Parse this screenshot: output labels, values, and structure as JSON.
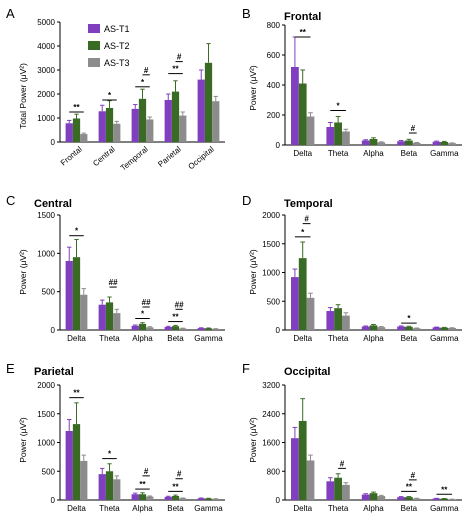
{
  "legend": [
    {
      "name": "AS-T1",
      "color": "#7f3fbf"
    },
    {
      "name": "AS-T2",
      "color": "#3a6b24"
    },
    {
      "name": "AS-T3",
      "color": "#8c8c8c"
    }
  ],
  "chart_data": [
    {
      "panel": "A",
      "type": "bar",
      "title": "",
      "ylabel": "Total Power (μV²)",
      "ylim": [
        0,
        5000
      ],
      "yticks": [
        0,
        1000,
        2000,
        3000,
        4000,
        5000
      ],
      "categories": [
        "Frontal",
        "Central",
        "Temporal",
        "Parietal",
        "Occipital"
      ],
      "rotate_labels": true,
      "series": [
        {
          "name": "AS-T1",
          "values": [
            780,
            1280,
            1380,
            1750,
            2600
          ],
          "errors": [
            120,
            250,
            180,
            250,
            400
          ]
        },
        {
          "name": "AS-T2",
          "values": [
            980,
            1420,
            1800,
            2100,
            3300
          ],
          "errors": [
            180,
            300,
            400,
            450,
            800
          ]
        },
        {
          "name": "AS-T3",
          "values": [
            330,
            760,
            940,
            1100,
            1700
          ],
          "errors": [
            40,
            100,
            100,
            150,
            200
          ]
        }
      ],
      "significance": [
        {
          "category": 0,
          "from": 0,
          "to": 2,
          "label": "**",
          "y": 1250
        },
        {
          "category": 1,
          "from": 0,
          "to": 2,
          "label": "*",
          "y": 1750
        },
        {
          "category": 2,
          "from": 0,
          "to": 2,
          "label": "*",
          "y": 2300
        },
        {
          "category": 2,
          "from": 1,
          "to": 2,
          "label": "#",
          "y": 2800
        },
        {
          "category": 3,
          "from": 0,
          "to": 2,
          "label": "**",
          "y": 2850
        },
        {
          "category": 3,
          "from": 1,
          "to": 2,
          "label": "#",
          "y": 3350
        }
      ]
    },
    {
      "panel": "B",
      "type": "bar",
      "title": "Frontal",
      "ylabel": "Power (μV²)",
      "ylim": [
        0,
        800
      ],
      "yticks": [
        0,
        200,
        400,
        600,
        800
      ],
      "categories": [
        "Delta",
        "Theta",
        "Alpha",
        "Beta",
        "Gamma"
      ],
      "series": [
        {
          "name": "AS-T1",
          "values": [
            520,
            120,
            30,
            25,
            22
          ],
          "errors": [
            200,
            30,
            5,
            5,
            4
          ]
        },
        {
          "name": "AS-T2",
          "values": [
            410,
            150,
            40,
            30,
            20
          ],
          "errors": [
            90,
            40,
            8,
            8,
            4
          ]
        },
        {
          "name": "AS-T3",
          "values": [
            190,
            90,
            18,
            14,
            12
          ],
          "errors": [
            25,
            15,
            3,
            3,
            2
          ]
        }
      ],
      "significance": [
        {
          "category": 0,
          "from": 0,
          "to": 2,
          "label": "**",
          "y": 720
        },
        {
          "category": 1,
          "from": 0,
          "to": 2,
          "label": "*",
          "y": 230
        },
        {
          "category": 3,
          "from": 1,
          "to": 2,
          "label": "#",
          "y": 80
        }
      ]
    },
    {
      "panel": "C",
      "type": "bar",
      "title": "Central",
      "ylabel": "Power (μV²)",
      "ylim": [
        0,
        1500
      ],
      "yticks": [
        0,
        500,
        1000,
        1500
      ],
      "categories": [
        "Delta",
        "Theta",
        "Alpha",
        "Beta",
        "Gamma"
      ],
      "series": [
        {
          "name": "AS-T1",
          "values": [
            900,
            330,
            55,
            40,
            25
          ],
          "errors": [
            180,
            60,
            10,
            8,
            4
          ]
        },
        {
          "name": "AS-T2",
          "values": [
            950,
            360,
            80,
            50,
            22
          ],
          "errors": [
            230,
            70,
            15,
            10,
            4
          ]
        },
        {
          "name": "AS-T3",
          "values": [
            460,
            220,
            35,
            20,
            15
          ],
          "errors": [
            80,
            50,
            8,
            4,
            3
          ]
        }
      ],
      "significance": [
        {
          "category": 0,
          "from": 0,
          "to": 2,
          "label": "*",
          "y": 1230
        },
        {
          "category": 1,
          "from": 1,
          "to": 2,
          "label": "##",
          "y": 560
        },
        {
          "category": 2,
          "from": 0,
          "to": 2,
          "label": "*",
          "y": 150
        },
        {
          "category": 2,
          "from": 1,
          "to": 2,
          "label": "##",
          "y": 300
        },
        {
          "category": 3,
          "from": 0,
          "to": 2,
          "label": "**",
          "y": 110
        },
        {
          "category": 3,
          "from": 1,
          "to": 2,
          "label": "##",
          "y": 270
        }
      ]
    },
    {
      "panel": "D",
      "type": "bar",
      "title": "Temporal",
      "ylabel": "Power (μV²)",
      "ylim": [
        0,
        2000
      ],
      "yticks": [
        0,
        500,
        1000,
        1500,
        2000
      ],
      "categories": [
        "Delta",
        "Theta",
        "Alpha",
        "Beta",
        "Gamma"
      ],
      "series": [
        {
          "name": "AS-T1",
          "values": [
            920,
            330,
            60,
            60,
            45
          ],
          "errors": [
            140,
            60,
            10,
            10,
            6
          ]
        },
        {
          "name": "AS-T2",
          "values": [
            1250,
            380,
            80,
            55,
            40
          ],
          "errors": [
            280,
            60,
            15,
            10,
            5
          ]
        },
        {
          "name": "AS-T3",
          "values": [
            560,
            250,
            50,
            30,
            35
          ],
          "errors": [
            80,
            50,
            10,
            5,
            5
          ]
        }
      ],
      "significance": [
        {
          "category": 0,
          "from": 0,
          "to": 2,
          "label": "*",
          "y": 1620
        },
        {
          "category": 0,
          "from": 1,
          "to": 2,
          "label": "#",
          "y": 1850
        },
        {
          "category": 3,
          "from": 0,
          "to": 2,
          "label": "*",
          "y": 120
        }
      ]
    },
    {
      "panel": "E",
      "type": "bar",
      "title": "Parietal",
      "ylabel": "Power (μV²)",
      "ylim": [
        0,
        2000
      ],
      "yticks": [
        0,
        500,
        1000,
        1500,
        2000
      ],
      "categories": [
        "Delta",
        "Theta",
        "Alpha",
        "Beta",
        "Gamma"
      ],
      "series": [
        {
          "name": "AS-T1",
          "values": [
            1200,
            450,
            100,
            55,
            30
          ],
          "errors": [
            200,
            100,
            20,
            10,
            5
          ]
        },
        {
          "name": "AS-T2",
          "values": [
            1320,
            500,
            100,
            70,
            25
          ],
          "errors": [
            370,
            130,
            25,
            15,
            5
          ]
        },
        {
          "name": "AS-T3",
          "values": [
            680,
            360,
            60,
            30,
            20
          ],
          "errors": [
            100,
            60,
            10,
            5,
            3
          ]
        }
      ],
      "significance": [
        {
          "category": 0,
          "from": 0,
          "to": 2,
          "label": "**",
          "y": 1780
        },
        {
          "category": 1,
          "from": 0,
          "to": 2,
          "label": "*",
          "y": 720
        },
        {
          "category": 2,
          "from": 0,
          "to": 2,
          "label": "**",
          "y": 190
        },
        {
          "category": 2,
          "from": 1,
          "to": 2,
          "label": "#",
          "y": 420
        },
        {
          "category": 3,
          "from": 0,
          "to": 2,
          "label": "**",
          "y": 150
        },
        {
          "category": 3,
          "from": 1,
          "to": 2,
          "label": "#",
          "y": 370
        }
      ]
    },
    {
      "panel": "F",
      "type": "bar",
      "title": "Occipital",
      "ylabel": "Power (μV²)",
      "ylim": [
        0,
        3200
      ],
      "yticks": [
        0,
        800,
        1600,
        2400,
        3200
      ],
      "categories": [
        "Delta",
        "Theta",
        "Alpha",
        "Beta",
        "Gamma"
      ],
      "series": [
        {
          "name": "AS-T1",
          "values": [
            1720,
            520,
            150,
            80,
            40
          ],
          "errors": [
            300,
            100,
            25,
            15,
            6
          ]
        },
        {
          "name": "AS-T2",
          "values": [
            2200,
            620,
            190,
            80,
            35
          ],
          "errors": [
            620,
            110,
            30,
            15,
            6
          ]
        },
        {
          "name": "AS-T3",
          "values": [
            1100,
            420,
            110,
            40,
            20
          ],
          "errors": [
            150,
            60,
            20,
            8,
            4
          ]
        }
      ],
      "significance": [
        {
          "category": 1,
          "from": 1,
          "to": 2,
          "label": "#",
          "y": 880
        },
        {
          "category": 3,
          "from": 0,
          "to": 2,
          "label": "**",
          "y": 240
        },
        {
          "category": 3,
          "from": 1,
          "to": 2,
          "label": "#",
          "y": 560
        },
        {
          "category": 4,
          "from": 0,
          "to": 2,
          "label": "**",
          "y": 160
        }
      ]
    }
  ]
}
